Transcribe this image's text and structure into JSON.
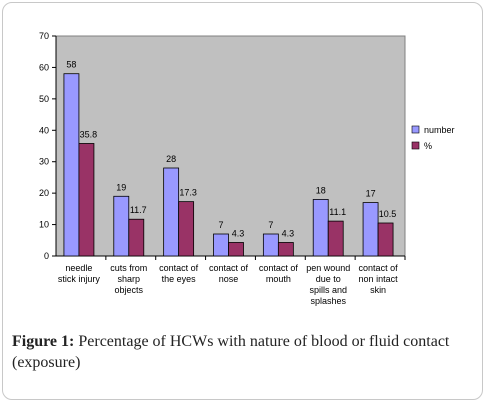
{
  "chart_data": {
    "type": "bar",
    "title": "",
    "xlabel": "",
    "ylabel": "",
    "ylim": [
      0,
      70
    ],
    "yticks": [
      0,
      10,
      20,
      30,
      40,
      50,
      60,
      70
    ],
    "grid": false,
    "legend_position": "right",
    "categories": [
      [
        "needle",
        "stick injury"
      ],
      [
        "cuts from",
        "sharp",
        "objects"
      ],
      [
        "contact of",
        "the eyes"
      ],
      [
        "contact of",
        "nose"
      ],
      [
        "contact of",
        "mouth"
      ],
      [
        "pen wound",
        "due to",
        "spills and",
        "splashes"
      ],
      [
        "contact of",
        "non intact",
        "skin"
      ]
    ],
    "series": [
      {
        "name": "number",
        "color": "#9999ff",
        "values": [
          58,
          19,
          28,
          7,
          7,
          18,
          17
        ],
        "labels": [
          "58",
          "19",
          "28",
          "7",
          "7",
          "18",
          "17"
        ]
      },
      {
        "name": "%",
        "color": "#993366",
        "values": [
          35.8,
          11.7,
          17.3,
          4.3,
          4.3,
          11.1,
          10.5
        ],
        "labels": [
          "35.8",
          "11.7",
          "17.3",
          "4.3",
          "4.3",
          "11.1",
          "10.5"
        ]
      }
    ],
    "plot_background": "#c0c0c0"
  },
  "caption": {
    "label": "Figure 1:",
    "text": " Percentage of HCWs with nature of blood or fluid contact (exposure)"
  }
}
